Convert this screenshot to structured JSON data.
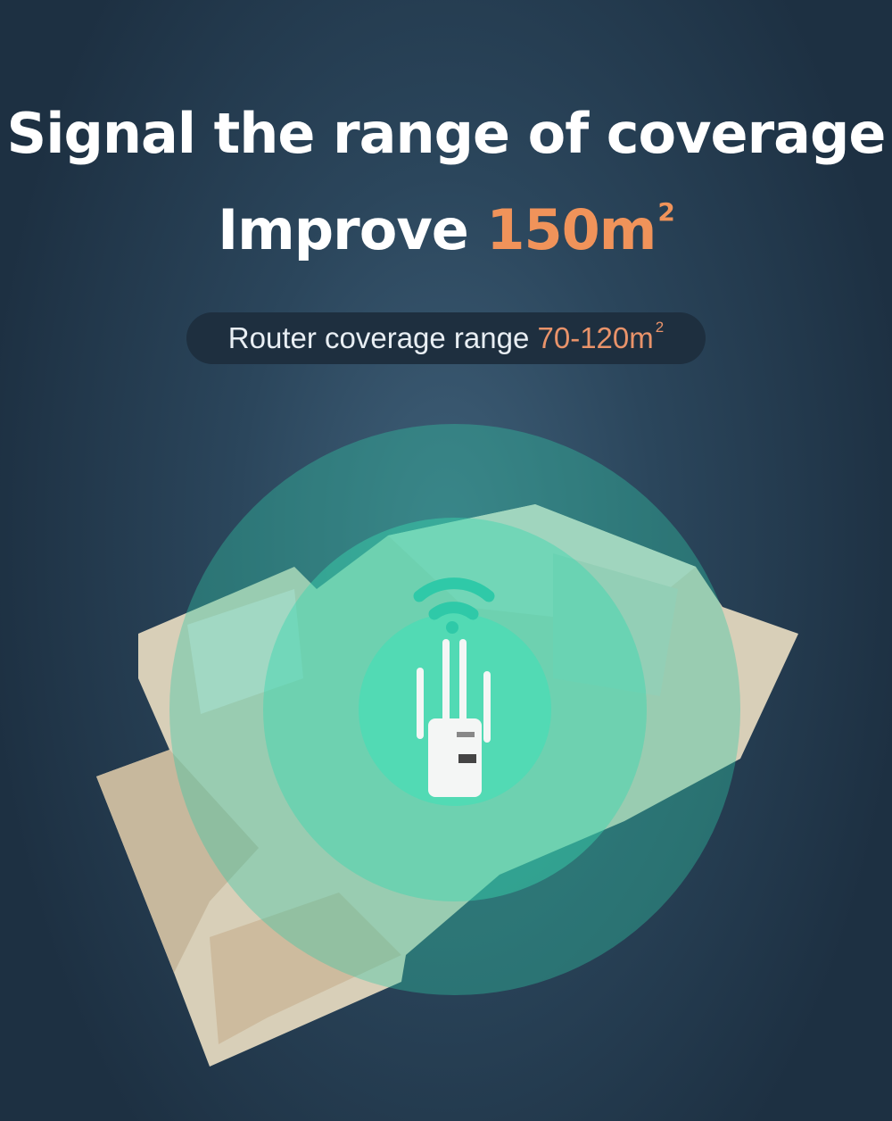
{
  "headline": {
    "line1": "Signal the range of coverage",
    "line2_prefix": "Improve ",
    "line2_value": "150m",
    "line2_unit_sup": "2"
  },
  "subtitle": {
    "prefix": "Router coverage range ",
    "value": "70-120m",
    "unit_sup": "2"
  },
  "colors": {
    "accent": "#f0935a",
    "coverage": "#3ad6b0",
    "background": "#22384b"
  },
  "icons": [
    "wifi-signal-icon",
    "range-extender-device",
    "floor-plan-illustration"
  ]
}
